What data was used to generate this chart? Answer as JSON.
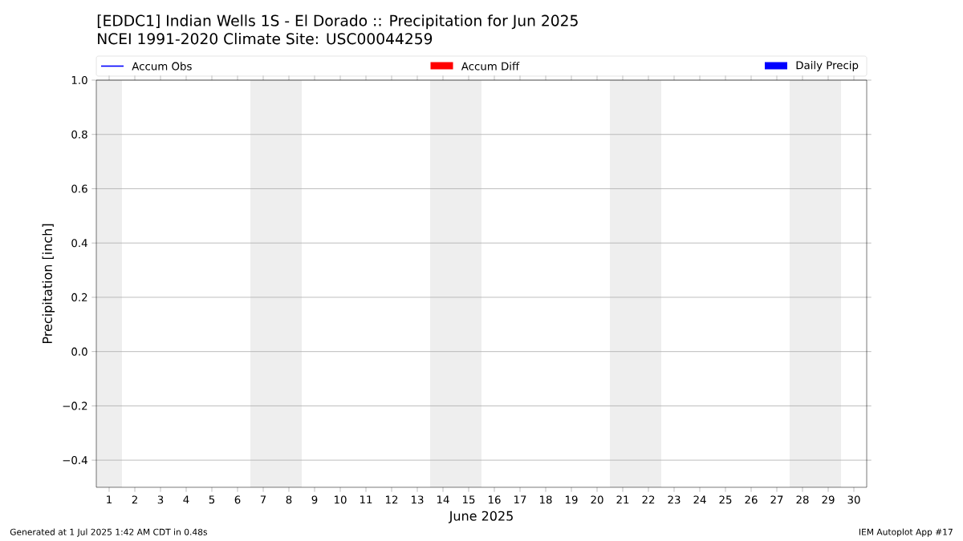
{
  "chart_data": {
    "type": "bar",
    "title": "[EDDC1] Indian Wells 1S - El Dorado :: Precipitation for Jun 2025",
    "subtitle": "NCEI 1991-2020 Climate Site: USC00044259",
    "xlabel": "June 2025",
    "ylabel": "Precipitation [inch]",
    "categories": [
      "1",
      "2",
      "3",
      "4",
      "5",
      "6",
      "7",
      "8",
      "9",
      "10",
      "11",
      "12",
      "13",
      "14",
      "15",
      "16",
      "17",
      "18",
      "19",
      "20",
      "21",
      "22",
      "23",
      "24",
      "25",
      "26",
      "27",
      "28",
      "29",
      "30"
    ],
    "series": [
      {
        "name": "Accum Obs",
        "type": "line",
        "color": "#0000ff",
        "values": [
          null,
          null,
          null,
          null,
          null,
          null,
          null,
          null,
          null,
          null,
          null,
          null,
          null,
          null,
          null,
          null,
          null,
          null,
          null,
          null,
          null,
          null,
          null,
          null,
          null,
          null,
          null,
          null,
          null,
          null
        ]
      },
      {
        "name": "Accum Diff",
        "color": "#ff0000",
        "values": [
          null,
          null,
          null,
          null,
          null,
          null,
          null,
          null,
          null,
          null,
          null,
          null,
          null,
          null,
          null,
          null,
          null,
          null,
          null,
          null,
          null,
          null,
          null,
          null,
          null,
          null,
          null,
          null,
          null,
          null
        ]
      },
      {
        "name": "Daily Precip",
        "color": "#0000ff",
        "values": [
          null,
          null,
          null,
          null,
          null,
          null,
          null,
          null,
          null,
          null,
          null,
          null,
          null,
          null,
          null,
          null,
          null,
          null,
          null,
          null,
          null,
          null,
          null,
          null,
          null,
          null,
          null,
          null,
          null,
          null
        ]
      }
    ],
    "ylim": [
      -0.5,
      1.0
    ],
    "yticks": [
      {
        "value": -0.4,
        "label": "−0.4"
      },
      {
        "value": -0.2,
        "label": "−0.2"
      },
      {
        "value": 0.0,
        "label": "0.0"
      },
      {
        "value": 0.2,
        "label": "0.2"
      },
      {
        "value": 0.4,
        "label": "0.4"
      },
      {
        "value": 0.6,
        "label": "0.6"
      },
      {
        "value": 0.8,
        "label": "0.8"
      },
      {
        "value": 1.0,
        "label": "1.0"
      }
    ],
    "grid": "y",
    "legend": "top",
    "bands": [
      {
        "axis": "x",
        "from": "1",
        "to": "1",
        "color": "#eeeeee"
      },
      {
        "axis": "x",
        "from": "7",
        "to": "8",
        "color": "#eeeeee"
      },
      {
        "axis": "x",
        "from": "14",
        "to": "15",
        "color": "#eeeeee"
      },
      {
        "axis": "x",
        "from": "21",
        "to": "22",
        "color": "#eeeeee"
      },
      {
        "axis": "x",
        "from": "28",
        "to": "29",
        "color": "#eeeeee"
      }
    ],
    "annotations": [
      "Generated at 1 Jul 2025 1:42 AM CDT in 0.48s",
      "IEM Autoplot App #17"
    ]
  }
}
